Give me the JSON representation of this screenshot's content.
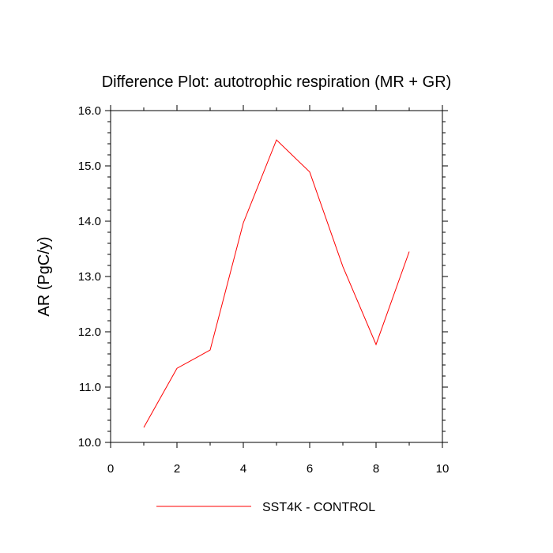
{
  "chart_data": {
    "type": "line",
    "title": "Difference Plot: autotrophic respiration (MR + GR)",
    "xlabel": "",
    "ylabel": "AR  (PgC/y)",
    "xlim": [
      0,
      10
    ],
    "ylim": [
      10.0,
      16.0
    ],
    "x_ticks": [
      0,
      2,
      4,
      6,
      8,
      10
    ],
    "x_tick_labels": [
      "0",
      "2",
      "4",
      "6",
      "8",
      "10"
    ],
    "y_ticks": [
      10.0,
      11.0,
      12.0,
      13.0,
      14.0,
      15.0,
      16.0
    ],
    "y_tick_labels": [
      "10.0",
      "11.0",
      "12.0",
      "13.0",
      "14.0",
      "15.0",
      "16.0"
    ],
    "grid": false,
    "legend_position": "bottom-center",
    "series": [
      {
        "name": "SST4K - CONTROL",
        "color": "#ff0000",
        "x": [
          1,
          2,
          3,
          4,
          5,
          6,
          7,
          8,
          9
        ],
        "y": [
          10.27,
          11.34,
          11.67,
          13.97,
          15.47,
          14.89,
          13.18,
          11.77,
          13.45
        ]
      }
    ]
  }
}
